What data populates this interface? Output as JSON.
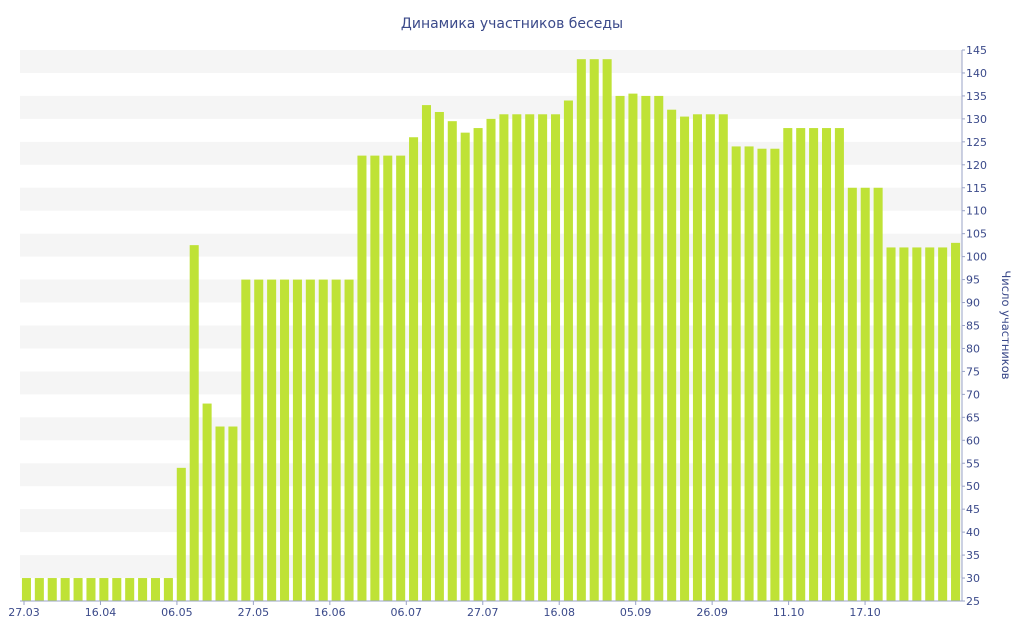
{
  "chart_data": {
    "type": "bar",
    "title": "Динамика участников беседы",
    "xlabel": "",
    "ylabel": "Число участников",
    "ylim": [
      25,
      145
    ],
    "y_ticks": [
      25,
      30,
      35,
      40,
      45,
      50,
      55,
      60,
      65,
      70,
      75,
      80,
      85,
      90,
      95,
      100,
      105,
      110,
      115,
      120,
      125,
      130,
      135,
      140,
      145
    ],
    "x_tick_labels": [
      "27.03",
      "16.04",
      "06.05",
      "27.05",
      "16.06",
      "06.07",
      "27.07",
      "16.08",
      "05.09",
      "26.09",
      "11.10",
      "17.10"
    ],
    "grid": "horizontal bands",
    "bar_color": "#bfe236",
    "band_color": "#f5f5f5",
    "text_color": "#3b4a8a",
    "values": [
      30,
      30,
      30,
      30,
      30,
      30,
      30,
      30,
      30,
      30,
      30,
      30,
      54,
      102.5,
      68,
      63,
      63,
      95,
      95,
      95,
      95,
      95,
      95,
      95,
      95,
      95,
      122,
      122,
      122,
      122,
      126,
      133,
      131.5,
      129.5,
      127,
      128,
      130,
      131,
      131,
      131,
      131,
      131,
      134,
      143,
      143,
      143,
      135,
      135.5,
      135,
      135,
      132,
      130.5,
      131,
      131,
      131,
      124,
      124,
      123.5,
      123.5,
      128,
      128,
      128,
      128,
      128,
      115,
      115,
      115,
      102,
      102,
      102,
      102,
      102,
      103
    ]
  }
}
